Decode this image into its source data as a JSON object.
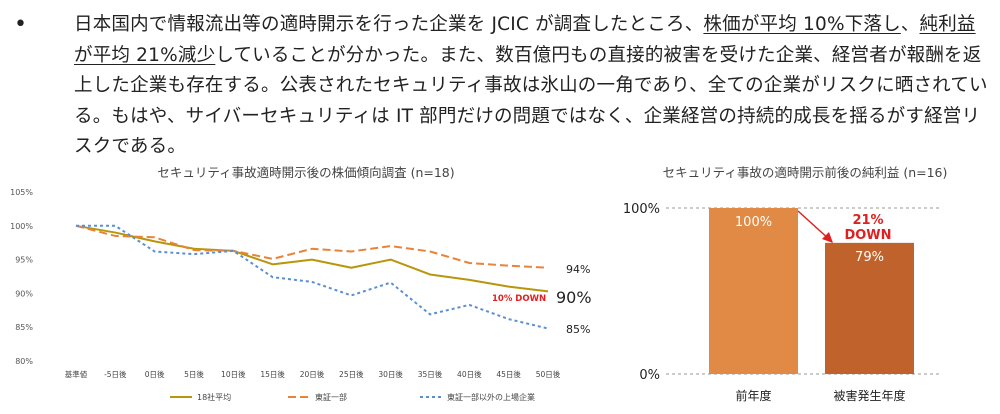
{
  "paragraph": {
    "bullet": "•",
    "part1": "日本国内で情報流出等の適時開示を行った企業を JCIC が調査したところ、",
    "underline1": "株価が平均 10%下落し",
    "part2": "、",
    "underline2": "純利益が平均 21%減少",
    "part3": "していることが分かった。また、数百億円もの直接的被害を受けた企業、経営者が報酬を返上した企業も存在する。公表されたセキュリティ事故は氷山の一角であり、全ての企業がリスクに晒されている。もはや、サイバーセキュリティは IT 部門だけの問題ではなく、企業経営の持続的成長を揺るがす経営リスクである。"
  },
  "chart_data": [
    {
      "type": "line",
      "title": "セキュリティ事故適時開示後の株価傾向調査 (n=18)",
      "categories": [
        "基準値",
        "-5日後",
        "0日後",
        "5日後",
        "10日後",
        "15日後",
        "20日後",
        "25日後",
        "30日後",
        "35日後",
        "40日後",
        "45日後",
        "50日後"
      ],
      "yticks": [
        "105%",
        "100%",
        "95%",
        "90%",
        "85%",
        "80%"
      ],
      "ylim": [
        80,
        105
      ],
      "grid": false,
      "legend_position": "bottom",
      "series": [
        {
          "name": "18社平均",
          "color": "#b8960c",
          "dash": "solid",
          "values": [
            100,
            99.0,
            97.7,
            96.6,
            96.3,
            94.3,
            95.0,
            93.8,
            95.0,
            92.8,
            92.0,
            91.0,
            90.3
          ]
        },
        {
          "name": "東証一部",
          "color": "#e8833a",
          "dash": "dash",
          "values": [
            100,
            98.5,
            98.3,
            96.4,
            96.3,
            95.1,
            96.6,
            96.2,
            97.0,
            96.2,
            94.5,
            94.1,
            93.8
          ]
        },
        {
          "name": "東証一部以外の上場企業",
          "color": "#5b8fd4",
          "dash": "dot",
          "values": [
            100,
            100.0,
            96.2,
            95.8,
            96.3,
            92.4,
            91.7,
            89.7,
            91.6,
            86.9,
            88.3,
            86.2,
            84.8
          ]
        }
      ],
      "annotations": {
        "end_label_1": "94%",
        "end_label_2": "90%",
        "end_label_3": "85%",
        "down_label": "10% DOWN"
      }
    },
    {
      "type": "bar",
      "title": "セキュリティ事故の適時開示前後の純利益 (n=16)",
      "categories": [
        "前年度",
        "被害発生年度"
      ],
      "values": [
        100,
        79
      ],
      "value_labels": [
        "100%",
        "79%"
      ],
      "yticks": [
        "100%",
        "0%"
      ],
      "ylim": [
        0,
        100
      ],
      "colors": [
        "#e08a45",
        "#c0622c"
      ],
      "annotation_line1": "21%",
      "annotation_line2": "DOWN",
      "annotation_color": "#e02020"
    }
  ]
}
